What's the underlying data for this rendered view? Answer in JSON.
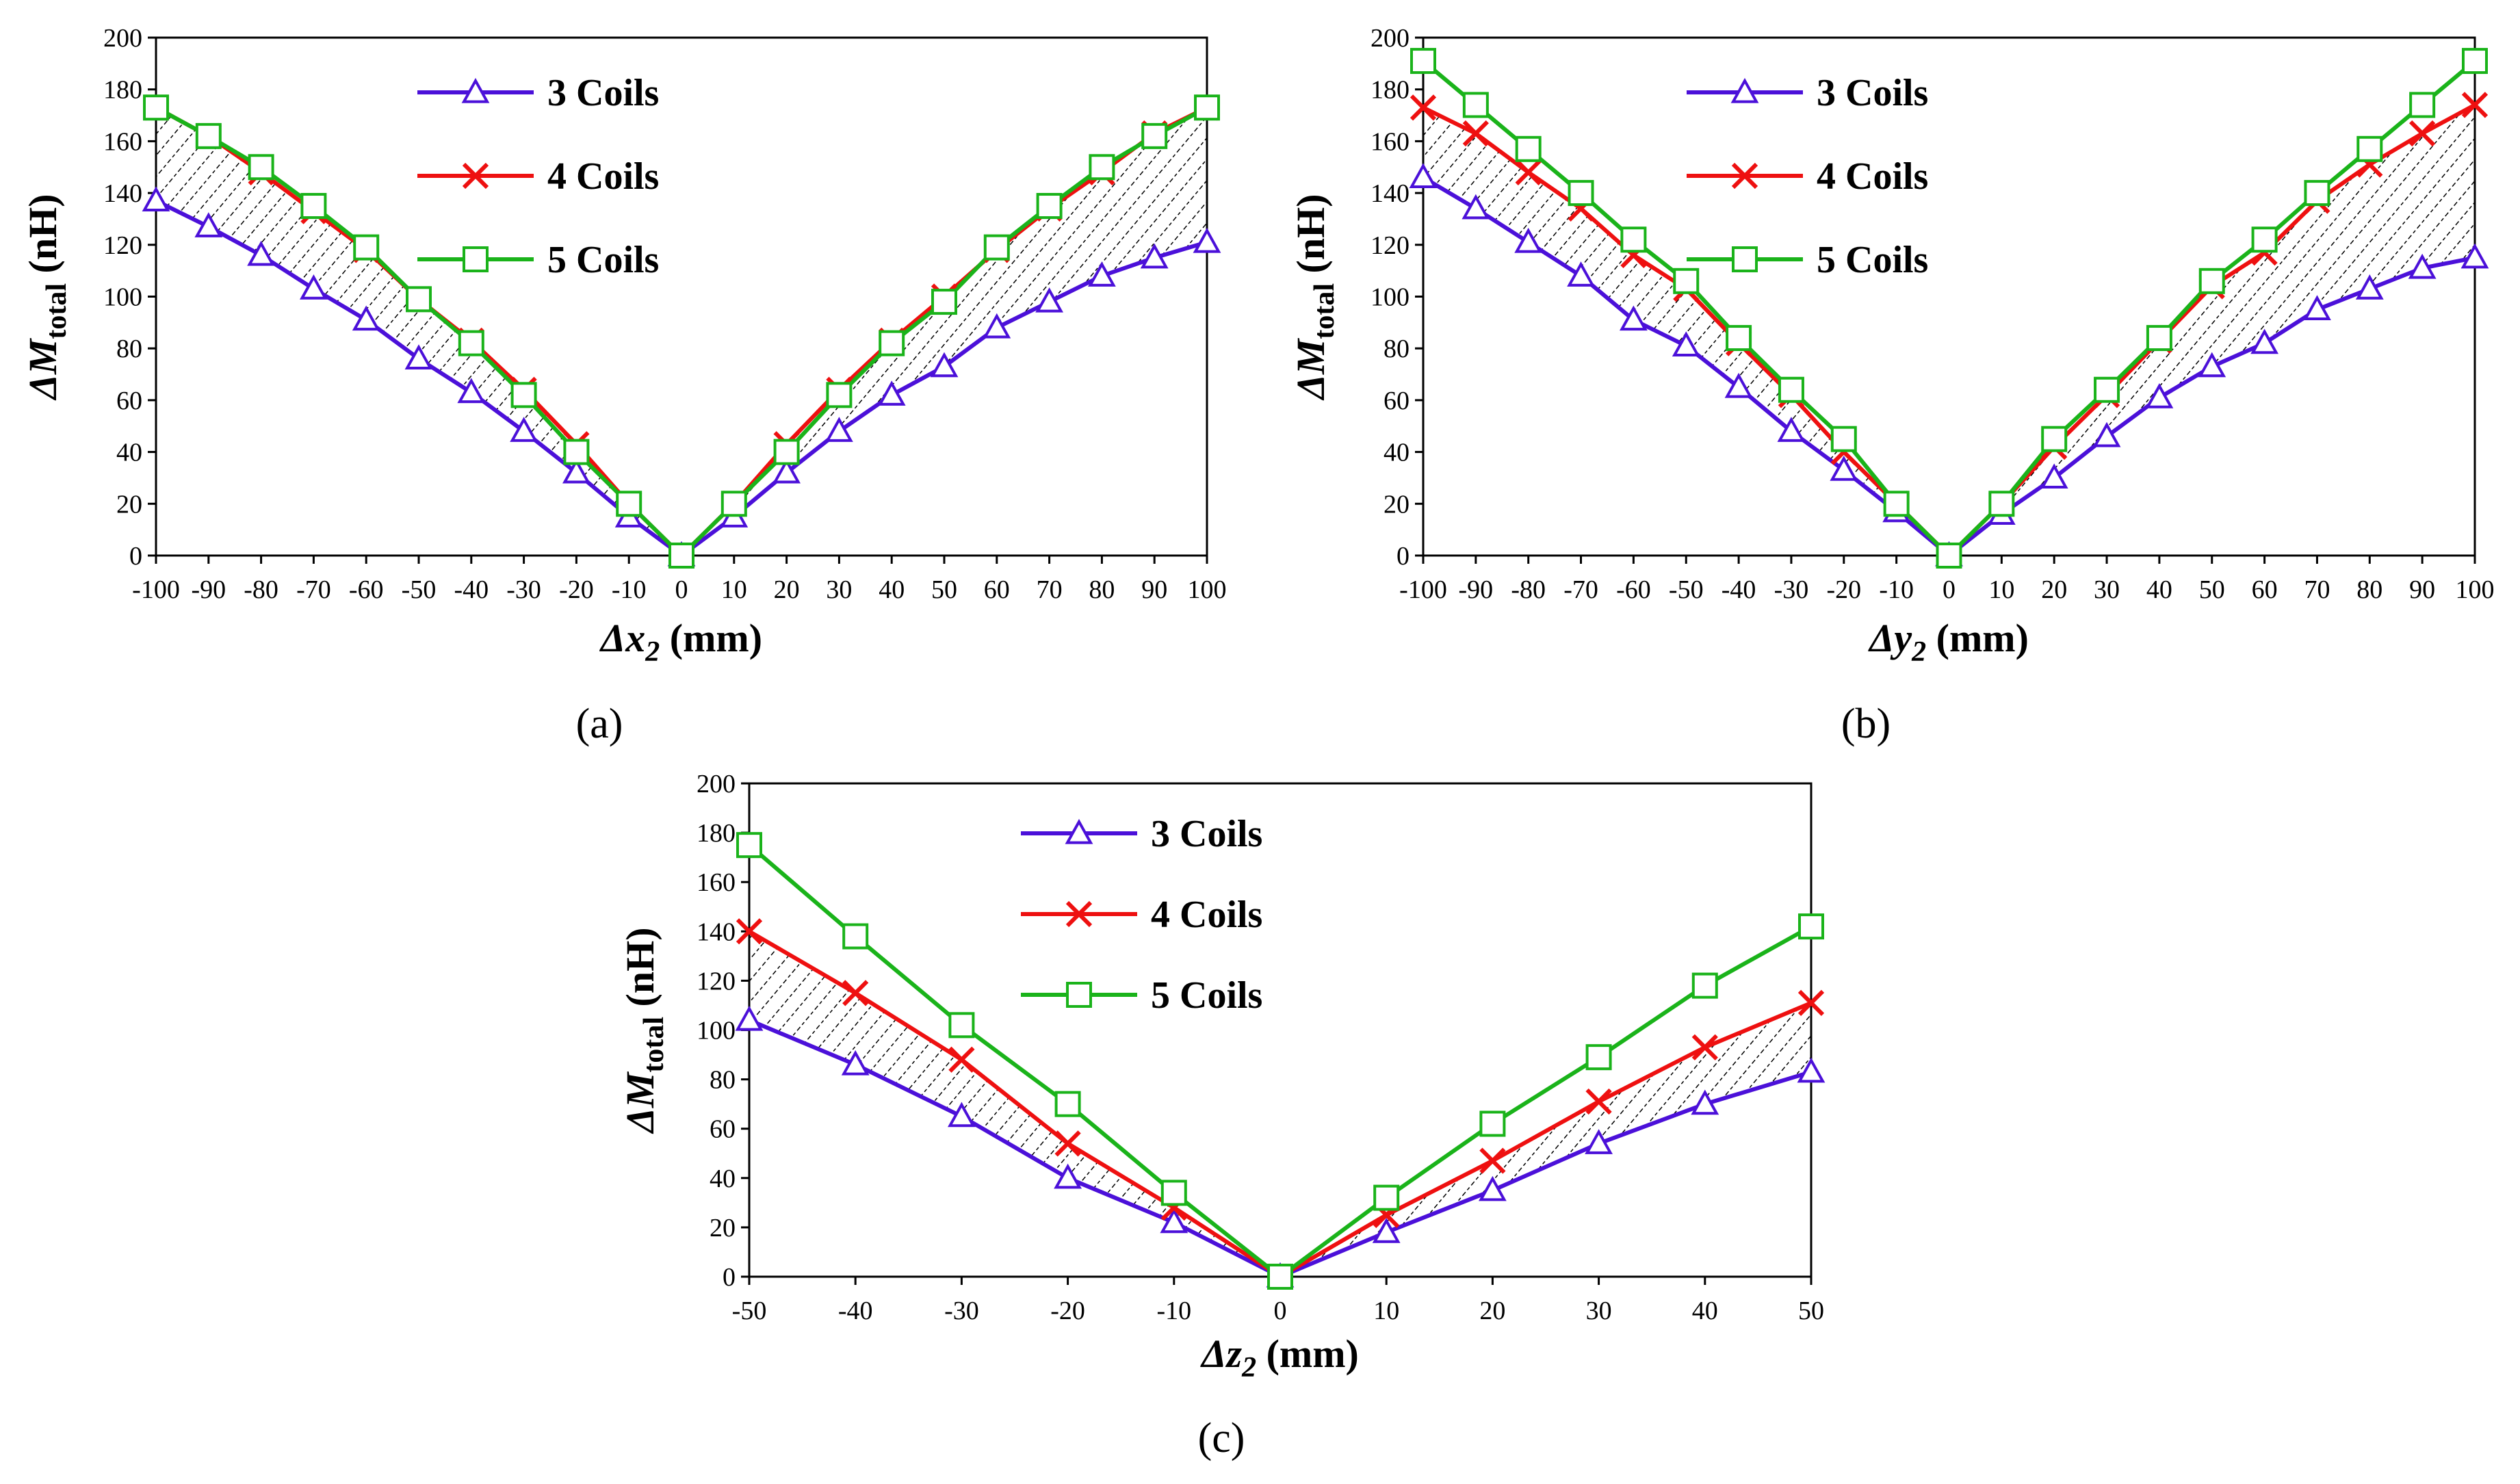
{
  "colors": {
    "c3": "#4b10d9",
    "c4": "#ee1010",
    "c5": "#1ab31a",
    "frame": "#000000"
  },
  "chart_data": [
    {
      "type": "line",
      "panel_label": "(a)",
      "xlabel": {
        "delta": "Δ",
        "var": "x",
        "sub": "2",
        "unit": "(mm)"
      },
      "ylabel": {
        "delta": "Δ",
        "var": "M",
        "sub": "total",
        "unit": "(nH)"
      },
      "xlim": [
        -100,
        100
      ],
      "ylim": [
        0,
        200
      ],
      "x_ticks": [
        "-100",
        "-90",
        "-80",
        "-70",
        "-60",
        "-50",
        "-40",
        "-30",
        "-20",
        "-10",
        "0",
        "10",
        "20",
        "30",
        "40",
        "50",
        "60",
        "70",
        "80",
        "90",
        "100"
      ],
      "y_ticks": [
        "0",
        "20",
        "40",
        "60",
        "80",
        "100",
        "120",
        "140",
        "160",
        "180",
        "200"
      ],
      "x": [
        -100,
        -90,
        -80,
        -70,
        -60,
        -50,
        -40,
        -30,
        -20,
        -10,
        0,
        10,
        20,
        30,
        40,
        50,
        60,
        70,
        80,
        90,
        100
      ],
      "series": [
        {
          "name": "3 Coils",
          "marker": "triangle",
          "values": [
            137,
            127,
            116,
            103,
            91,
            76,
            63,
            48,
            32,
            15,
            0,
            15,
            32,
            48,
            62,
            73,
            88,
            98,
            108,
            115,
            121
          ]
        },
        {
          "name": "4 Coils",
          "marker": "x",
          "values": [
            173,
            162,
            148,
            133,
            118,
            99,
            83,
            64,
            43,
            20,
            0,
            20,
            43,
            64,
            83,
            100,
            118,
            134,
            148,
            163,
            173
          ]
        },
        {
          "name": "5 Coils",
          "marker": "square",
          "values": [
            173,
            162,
            150,
            135,
            119,
            99,
            82,
            62,
            40,
            20,
            0,
            20,
            40,
            62,
            82,
            98,
            119,
            135,
            150,
            162,
            173
          ]
        }
      ],
      "legend": "top-center"
    },
    {
      "type": "line",
      "panel_label": "(b)",
      "xlabel": {
        "delta": "Δ",
        "var": "y",
        "sub": "2",
        "unit": "(mm)"
      },
      "ylabel": {
        "delta": "Δ",
        "var": "M",
        "sub": "total",
        "unit": "(nH)"
      },
      "xlim": [
        -100,
        100
      ],
      "ylim": [
        0,
        200
      ],
      "x_ticks": [
        "-100",
        "-90",
        "-80",
        "-70",
        "-60",
        "-50",
        "-40",
        "-30",
        "-20",
        "-10",
        "0",
        "10",
        "20",
        "30",
        "40",
        "50",
        "60",
        "70",
        "80",
        "90",
        "100"
      ],
      "y_ticks": [
        "0",
        "20",
        "40",
        "60",
        "80",
        "100",
        "120",
        "140",
        "160",
        "180",
        "200"
      ],
      "x": [
        -100,
        -90,
        -80,
        -70,
        -60,
        -50,
        -40,
        -30,
        -20,
        -10,
        0,
        10,
        20,
        30,
        40,
        50,
        60,
        70,
        80,
        90,
        100
      ],
      "series": [
        {
          "name": "3 Coils",
          "marker": "triangle",
          "values": [
            146,
            134,
            121,
            108,
            91,
            81,
            65,
            48,
            33,
            17,
            0,
            16,
            30,
            46,
            61,
            73,
            82,
            95,
            103,
            111,
            115
          ]
        },
        {
          "name": "4 Coils",
          "marker": "x",
          "values": [
            173,
            163,
            148,
            134,
            116,
            103,
            82,
            62,
            40,
            20,
            0,
            20,
            42,
            62,
            83,
            104,
            117,
            137,
            151,
            163,
            174
          ]
        },
        {
          "name": "5 Coils",
          "marker": "square",
          "values": [
            191,
            174,
            157,
            140,
            122,
            106,
            84,
            64,
            45,
            20,
            0,
            20,
            45,
            64,
            84,
            106,
            122,
            140,
            157,
            174,
            191
          ]
        }
      ],
      "legend": "top-center"
    },
    {
      "type": "line",
      "panel_label": "(c)",
      "xlabel": {
        "delta": "Δ",
        "var": "z",
        "sub": "2",
        "unit": "(mm)"
      },
      "ylabel": {
        "delta": "Δ",
        "var": "M",
        "sub": "total",
        "unit": "(nH)"
      },
      "xlim": [
        -50,
        50
      ],
      "ylim": [
        0,
        200
      ],
      "x_ticks": [
        "-50",
        "-40",
        "-30",
        "-20",
        "-10",
        "0",
        "10",
        "20",
        "30",
        "40",
        "50"
      ],
      "y_ticks": [
        "0",
        "20",
        "40",
        "60",
        "80",
        "100",
        "120",
        "140",
        "160",
        "180",
        "200"
      ],
      "x": [
        -50,
        -40,
        -30,
        -20,
        -10,
        0,
        10,
        20,
        30,
        40,
        50
      ],
      "series": [
        {
          "name": "3 Coils",
          "marker": "triangle",
          "values": [
            104,
            86,
            65,
            40,
            22,
            0,
            18,
            35,
            54,
            70,
            83
          ]
        },
        {
          "name": "4 Coils",
          "marker": "x",
          "values": [
            140,
            115,
            88,
            54,
            28,
            0,
            25,
            47,
            71,
            93,
            111
          ]
        },
        {
          "name": "5 Coils",
          "marker": "square",
          "values": [
            175,
            138,
            102,
            70,
            34,
            0,
            32,
            62,
            89,
            118,
            142
          ]
        }
      ],
      "legend": "top-center"
    }
  ]
}
